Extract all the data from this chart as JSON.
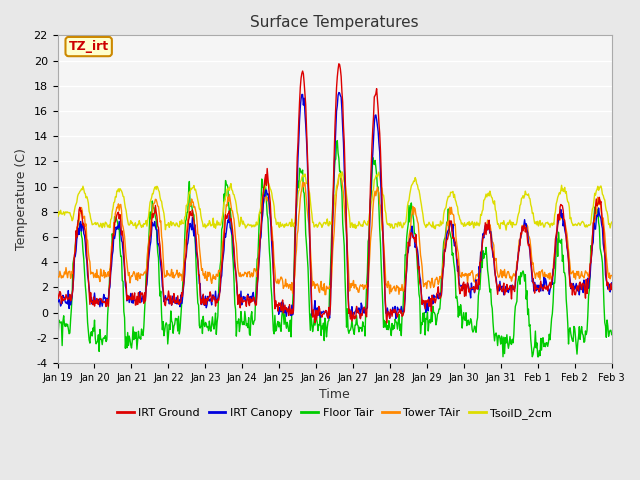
{
  "title": "Surface Temperatures",
  "xlabel": "Time",
  "ylabel": "Temperature (C)",
  "ylim": [
    -4,
    22
  ],
  "yticks": [
    -4,
    -2,
    0,
    2,
    4,
    6,
    8,
    10,
    12,
    14,
    16,
    18,
    20,
    22
  ],
  "xtick_labels": [
    "Jan 19",
    "Jan 20",
    "Jan 21",
    "Jan 22",
    "Jan 23",
    "Jan 24",
    "Jan 25",
    "Jan 26",
    "Jan 27",
    "Jan 28",
    "Jan 29",
    "Jan 30",
    "Jan 31",
    "Feb 1",
    "Feb 2",
    "Feb 3"
  ],
  "annotation_text": "TZ_irt",
  "annotation_color": "#cc0000",
  "annotation_bg": "#ffffcc",
  "annotation_border": "#cc8800",
  "fig_bg": "#e8e8e8",
  "plot_bg": "#e8e8e8",
  "inner_bg": "#f5f5f5",
  "legend_entries": [
    "IRT Ground",
    "IRT Canopy",
    "Floor Tair",
    "Tower TAir",
    "TsoilD_2cm"
  ],
  "line_colors": [
    "#dd0000",
    "#0000dd",
    "#00cc00",
    "#ff8800",
    "#dddd00"
  ],
  "grid_color": "#cccccc"
}
